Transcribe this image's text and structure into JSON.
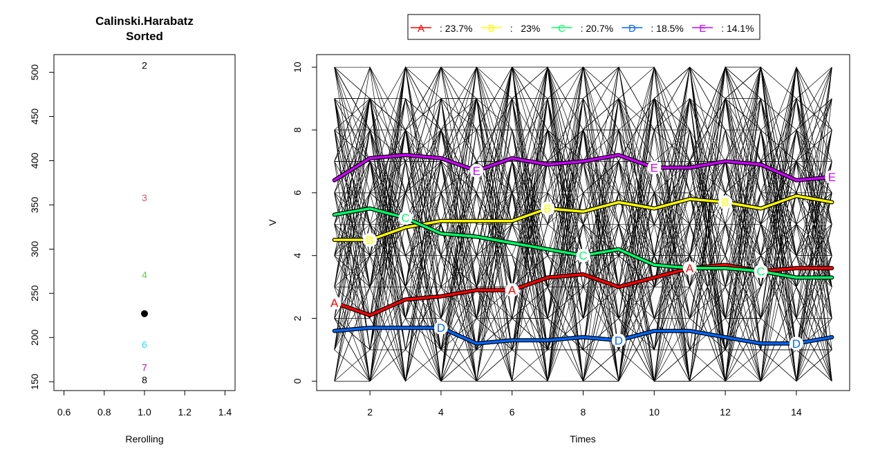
{
  "chart_data": [
    {
      "type": "scatter",
      "title": "Calinski.Harabatz",
      "subtitle": "Sorted",
      "xlabel": "Rerolling",
      "ylabel": "",
      "xlim": [
        0.55,
        1.45
      ],
      "ylim": [
        140,
        520
      ],
      "xticks": [
        "0.6",
        "0.8",
        "1.0",
        "1.2",
        "1.4"
      ],
      "xtick_values": [
        0.6,
        0.8,
        1.0,
        1.2,
        1.4
      ],
      "yticks": [
        "150",
        "200",
        "250",
        "300",
        "350",
        "400",
        "450",
        "500"
      ],
      "ytick_values": [
        150,
        200,
        250,
        300,
        350,
        400,
        450,
        500
      ],
      "labels": [
        {
          "text": "2",
          "x": 1.0,
          "y": 508,
          "color": "#000000"
        },
        {
          "text": "3",
          "x": 1.0,
          "y": 358,
          "color": "#DF536B"
        },
        {
          "text": "4",
          "x": 1.0,
          "y": 271,
          "color": "#61D04F"
        },
        {
          "text": "6",
          "x": 1.0,
          "y": 192,
          "color": "#28E2E5"
        },
        {
          "text": "7",
          "x": 1.0,
          "y": 166,
          "color": "#CD0BBC"
        },
        {
          "text": "8",
          "x": 1.0,
          "y": 152,
          "color": "#000000"
        }
      ],
      "points": [
        {
          "x": 1.0,
          "y": 227,
          "color": "#000000"
        }
      ]
    },
    {
      "type": "line",
      "title": "",
      "xlabel": "Times",
      "ylabel": "V",
      "xlim": [
        0.5,
        15.5
      ],
      "ylim": [
        -0.3,
        10.4
      ],
      "xticks": [
        "2",
        "4",
        "6",
        "8",
        "10",
        "12",
        "14"
      ],
      "xtick_values": [
        2,
        4,
        6,
        8,
        10,
        12,
        14
      ],
      "yticks": [
        "0",
        "2",
        "4",
        "6",
        "8",
        "10"
      ],
      "ytick_values": [
        0,
        2,
        4,
        6,
        8,
        10
      ],
      "x": [
        1,
        2,
        3,
        4,
        5,
        6,
        7,
        8,
        9,
        10,
        11,
        12,
        13,
        14,
        15
      ],
      "legend": {
        "placement": "top",
        "entries": [
          {
            "letter": "A",
            "text": ": 23.7%",
            "color": "#FF0000"
          },
          {
            "letter": "B",
            "text": ":   23%",
            "color": "#FFFF00"
          },
          {
            "letter": "C",
            "text": ": 20.7%",
            "color": "#00FF66"
          },
          {
            "letter": "D",
            "text": ": 18.5%",
            "color": "#0066FF"
          },
          {
            "letter": "E",
            "text": ": 14.1%",
            "color": "#CC00FF"
          }
        ]
      },
      "series": [
        {
          "letter": "A",
          "color": "#FF0000",
          "values": [
            2.5,
            2.1,
            2.6,
            2.7,
            2.9,
            2.9,
            3.3,
            3.4,
            3.0,
            3.3,
            3.6,
            3.7,
            3.5,
            3.6,
            3.6
          ],
          "marks": [
            1,
            6,
            11
          ]
        },
        {
          "letter": "B",
          "color": "#FFFF00",
          "values": [
            4.5,
            4.5,
            4.9,
            5.1,
            5.1,
            5.1,
            5.5,
            5.4,
            5.7,
            5.5,
            5.8,
            5.7,
            5.5,
            5.9,
            5.7
          ],
          "marks": [
            2,
            7,
            12
          ]
        },
        {
          "letter": "C",
          "color": "#00FF66",
          "values": [
            5.3,
            5.5,
            5.2,
            4.7,
            4.6,
            4.4,
            4.2,
            4.0,
            4.2,
            3.7,
            3.6,
            3.6,
            3.5,
            3.3,
            3.3
          ],
          "marks": [
            3,
            8,
            13
          ]
        },
        {
          "letter": "D",
          "color": "#0066FF",
          "values": [
            1.6,
            1.7,
            1.7,
            1.7,
            1.2,
            1.3,
            1.3,
            1.4,
            1.3,
            1.6,
            1.6,
            1.4,
            1.2,
            1.2,
            1.4
          ],
          "marks": [
            4,
            9,
            14
          ]
        },
        {
          "letter": "E",
          "color": "#CC00FF",
          "values": [
            6.4,
            7.1,
            7.2,
            7.1,
            6.7,
            7.1,
            6.9,
            7.0,
            7.2,
            6.8,
            6.8,
            7.0,
            6.9,
            6.4,
            6.5
          ],
          "marks": [
            5,
            10,
            15
          ]
        }
      ],
      "background_trajectories": {
        "count": 120,
        "levels": [
          0,
          1,
          2,
          3,
          4,
          5,
          6,
          7,
          8,
          9,
          10
        ],
        "color": "#000000"
      }
    }
  ]
}
